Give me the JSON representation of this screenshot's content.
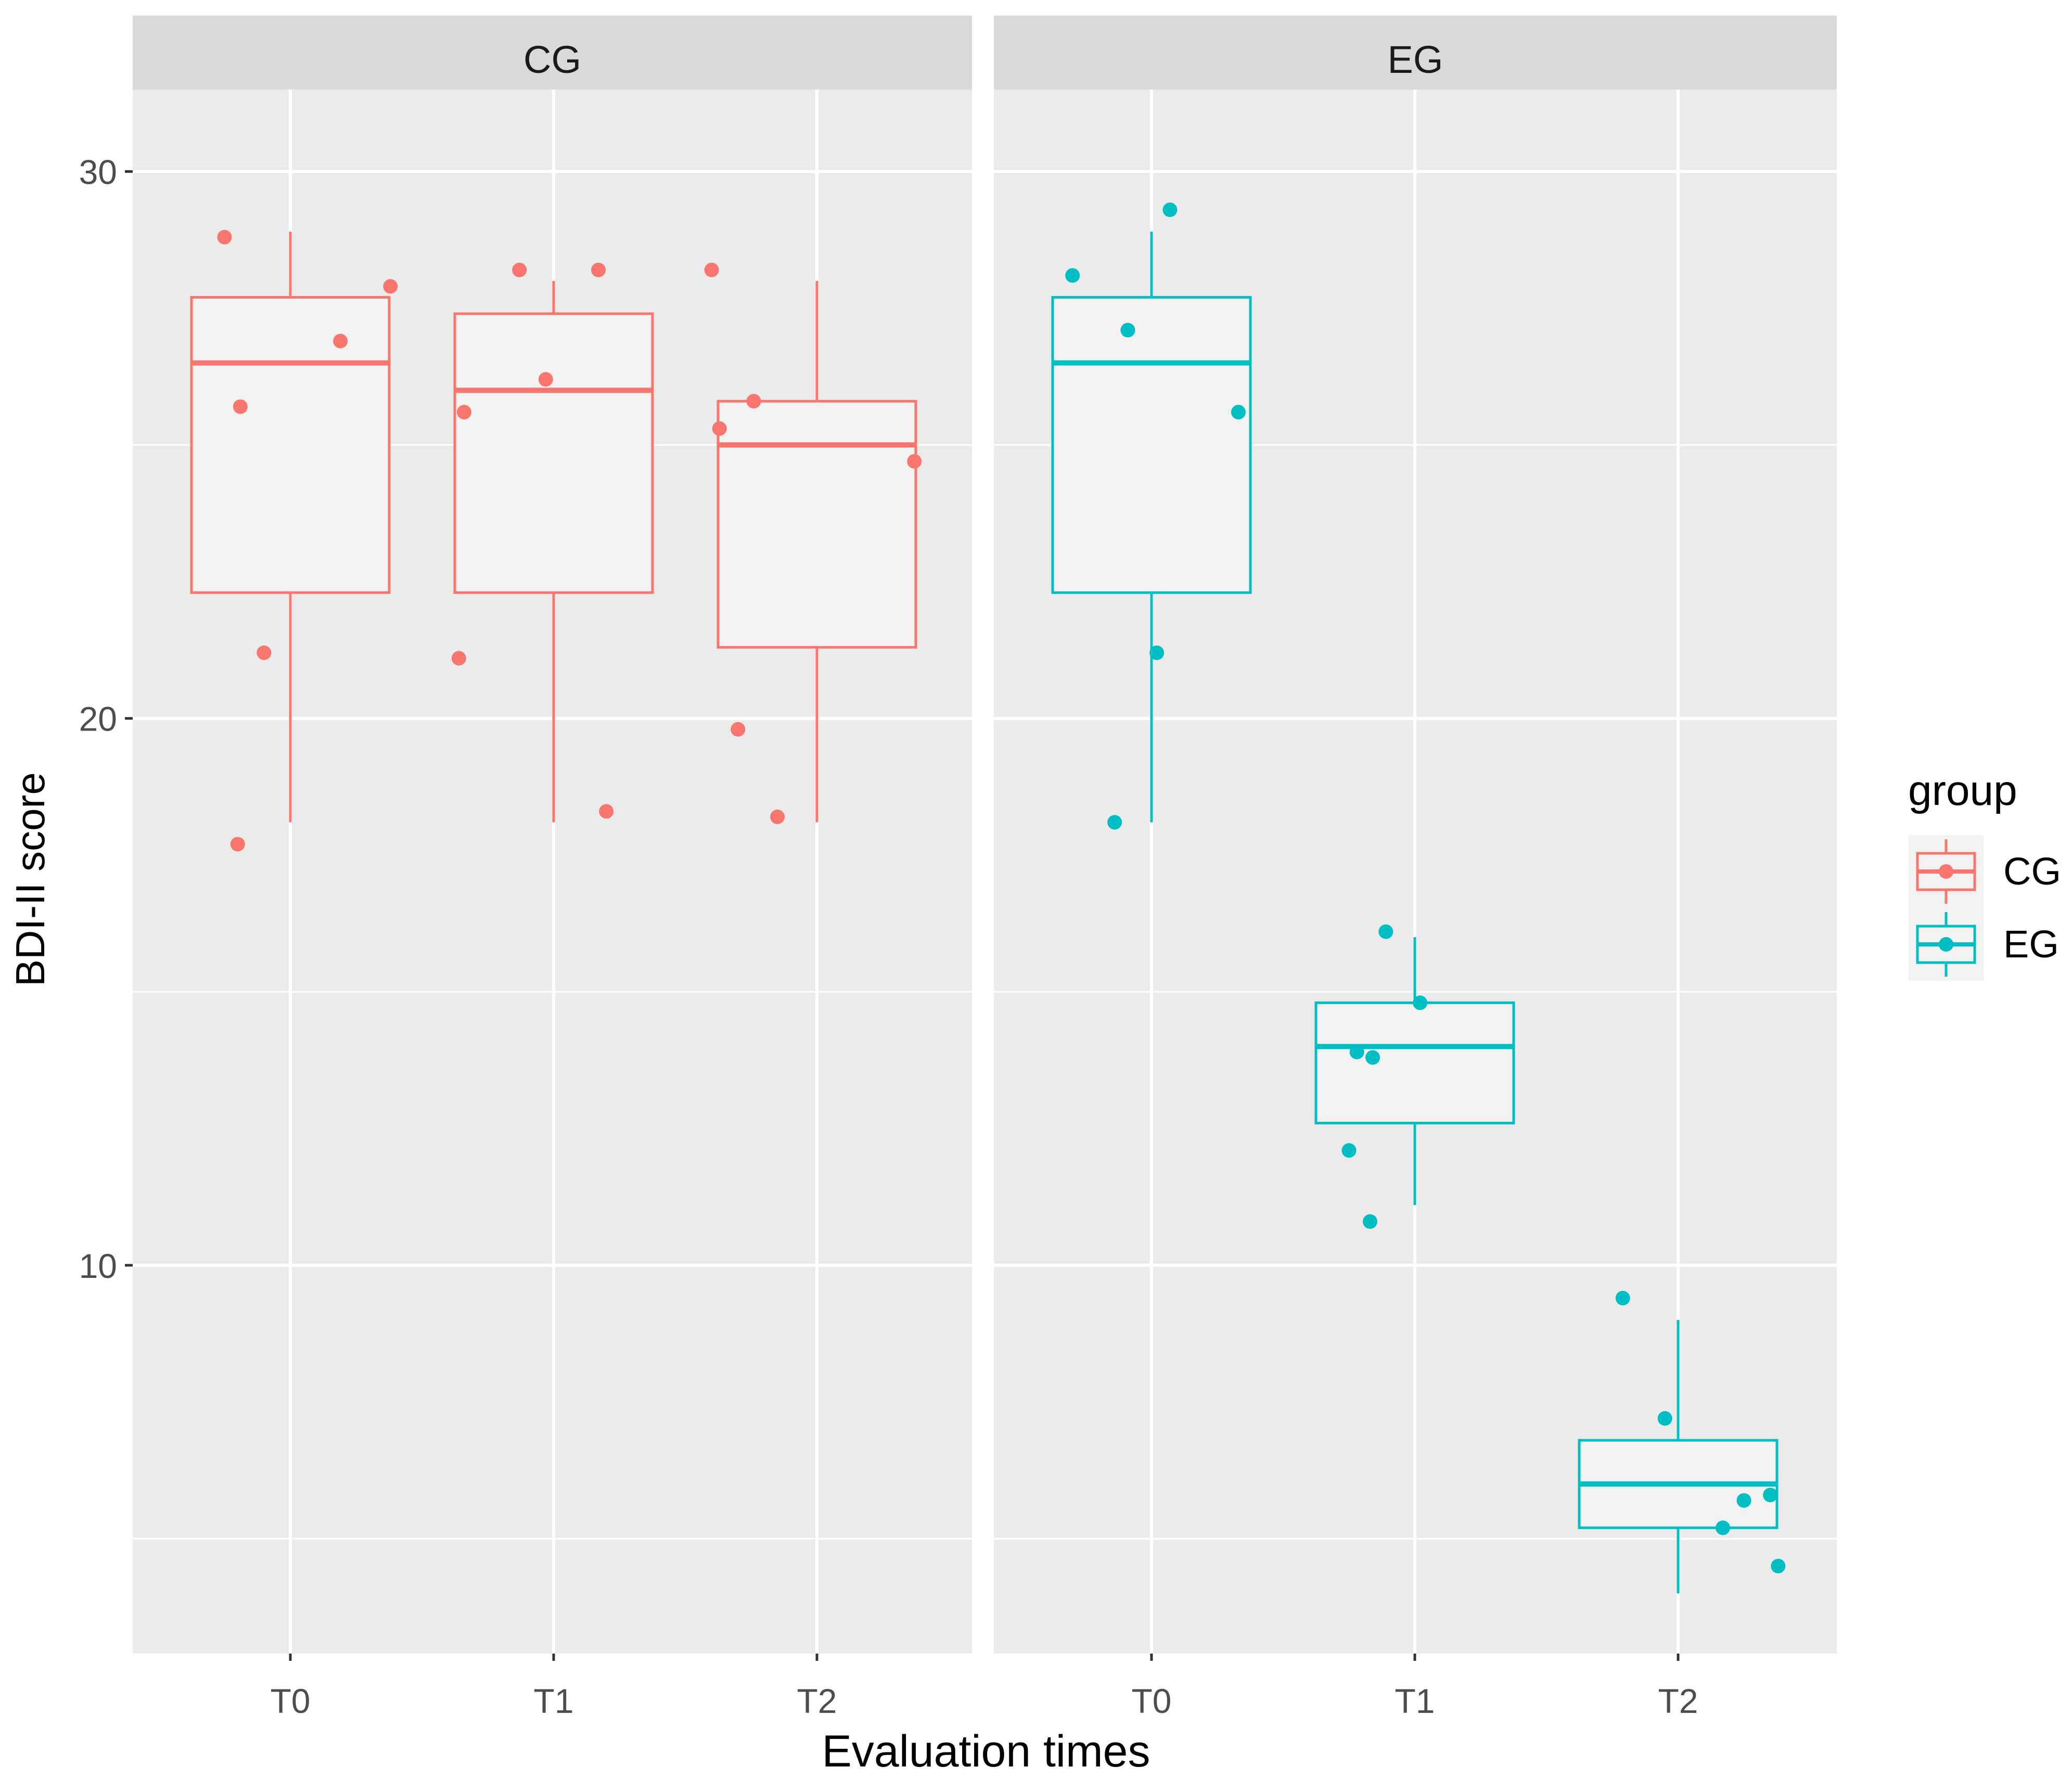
{
  "chart_data": {
    "type": "boxplot",
    "title": "",
    "xlabel": "Evaluation times",
    "ylabel": "BDI-II score",
    "ylim": [
      2.9,
      31.5
    ],
    "yticks": [
      10,
      20,
      30
    ],
    "categories": [
      "T0",
      "T1",
      "T2"
    ],
    "legend": {
      "title": "group",
      "position": "right",
      "entries": [
        {
          "label": "CG",
          "color": "#F8766D"
        },
        {
          "label": "EG",
          "color": "#00BFC4"
        }
      ]
    },
    "panels": [
      {
        "label": "CG",
        "color": "#F8766D",
        "boxes": [
          {
            "category": "T0",
            "min": 18.1,
            "q1": 22.3,
            "median": 26.5,
            "q3": 27.7,
            "max": 28.9
          },
          {
            "category": "T1",
            "min": 18.1,
            "q1": 22.3,
            "median": 26.0,
            "q3": 27.4,
            "max": 28.0
          },
          {
            "category": "T2",
            "min": 18.1,
            "q1": 21.3,
            "median": 25.0,
            "q3": 25.8,
            "max": 28.0
          }
        ],
        "points": [
          {
            "category": "T0",
            "jitter": -0.25,
            "y": 28.8
          },
          {
            "category": "T0",
            "jitter": 0.19,
            "y": 26.9
          },
          {
            "category": "T0",
            "jitter": 0.38,
            "y": 27.9
          },
          {
            "category": "T0",
            "jitter": -0.19,
            "y": 25.7
          },
          {
            "category": "T0",
            "jitter": -0.1,
            "y": 21.2
          },
          {
            "category": "T0",
            "jitter": -0.2,
            "y": 17.7
          },
          {
            "category": "T1",
            "jitter": -0.13,
            "y": 28.2
          },
          {
            "category": "T1",
            "jitter": 0.17,
            "y": 28.2
          },
          {
            "category": "T1",
            "jitter": -0.03,
            "y": 26.2
          },
          {
            "category": "T1",
            "jitter": -0.34,
            "y": 25.6
          },
          {
            "category": "T1",
            "jitter": -0.36,
            "y": 21.1
          },
          {
            "category": "T1",
            "jitter": 0.2,
            "y": 18.3
          },
          {
            "category": "T2",
            "jitter": -0.4,
            "y": 28.2
          },
          {
            "category": "T2",
            "jitter": -0.24,
            "y": 25.8
          },
          {
            "category": "T2",
            "jitter": -0.37,
            "y": 25.3
          },
          {
            "category": "T2",
            "jitter": 0.37,
            "y": 24.7
          },
          {
            "category": "T2",
            "jitter": -0.3,
            "y": 19.8
          },
          {
            "category": "T2",
            "jitter": -0.15,
            "y": 18.2
          }
        ]
      },
      {
        "label": "EG",
        "color": "#00BFC4",
        "boxes": [
          {
            "category": "T0",
            "min": 18.1,
            "q1": 22.3,
            "median": 26.5,
            "q3": 27.7,
            "max": 28.9
          },
          {
            "category": "T1",
            "min": 11.1,
            "q1": 12.6,
            "median": 14.0,
            "q3": 14.8,
            "max": 16.0
          },
          {
            "category": "T2",
            "min": 4.0,
            "q1": 5.2,
            "median": 6.0,
            "q3": 6.8,
            "max": 9.0
          }
        ],
        "points": [
          {
            "category": "T0",
            "jitter": 0.07,
            "y": 29.3
          },
          {
            "category": "T0",
            "jitter": -0.3,
            "y": 28.1
          },
          {
            "category": "T0",
            "jitter": -0.09,
            "y": 27.1
          },
          {
            "category": "T0",
            "jitter": 0.33,
            "y": 25.6
          },
          {
            "category": "T0",
            "jitter": 0.02,
            "y": 21.2
          },
          {
            "category": "T0",
            "jitter": -0.14,
            "y": 18.1
          },
          {
            "category": "T1",
            "jitter": -0.11,
            "y": 16.1
          },
          {
            "category": "T1",
            "jitter": 0.02,
            "y": 14.8
          },
          {
            "category": "T1",
            "jitter": -0.22,
            "y": 13.9
          },
          {
            "category": "T1",
            "jitter": -0.16,
            "y": 13.8
          },
          {
            "category": "T1",
            "jitter": -0.25,
            "y": 12.1
          },
          {
            "category": "T1",
            "jitter": -0.17,
            "y": 10.8
          },
          {
            "category": "T2",
            "jitter": -0.21,
            "y": 9.4
          },
          {
            "category": "T2",
            "jitter": -0.05,
            "y": 7.2
          },
          {
            "category": "T2",
            "jitter": 0.35,
            "y": 5.8
          },
          {
            "category": "T2",
            "jitter": 0.25,
            "y": 5.7
          },
          {
            "category": "T2",
            "jitter": 0.17,
            "y": 5.2
          },
          {
            "category": "T2",
            "jitter": 0.38,
            "y": 4.5
          }
        ]
      }
    ]
  }
}
